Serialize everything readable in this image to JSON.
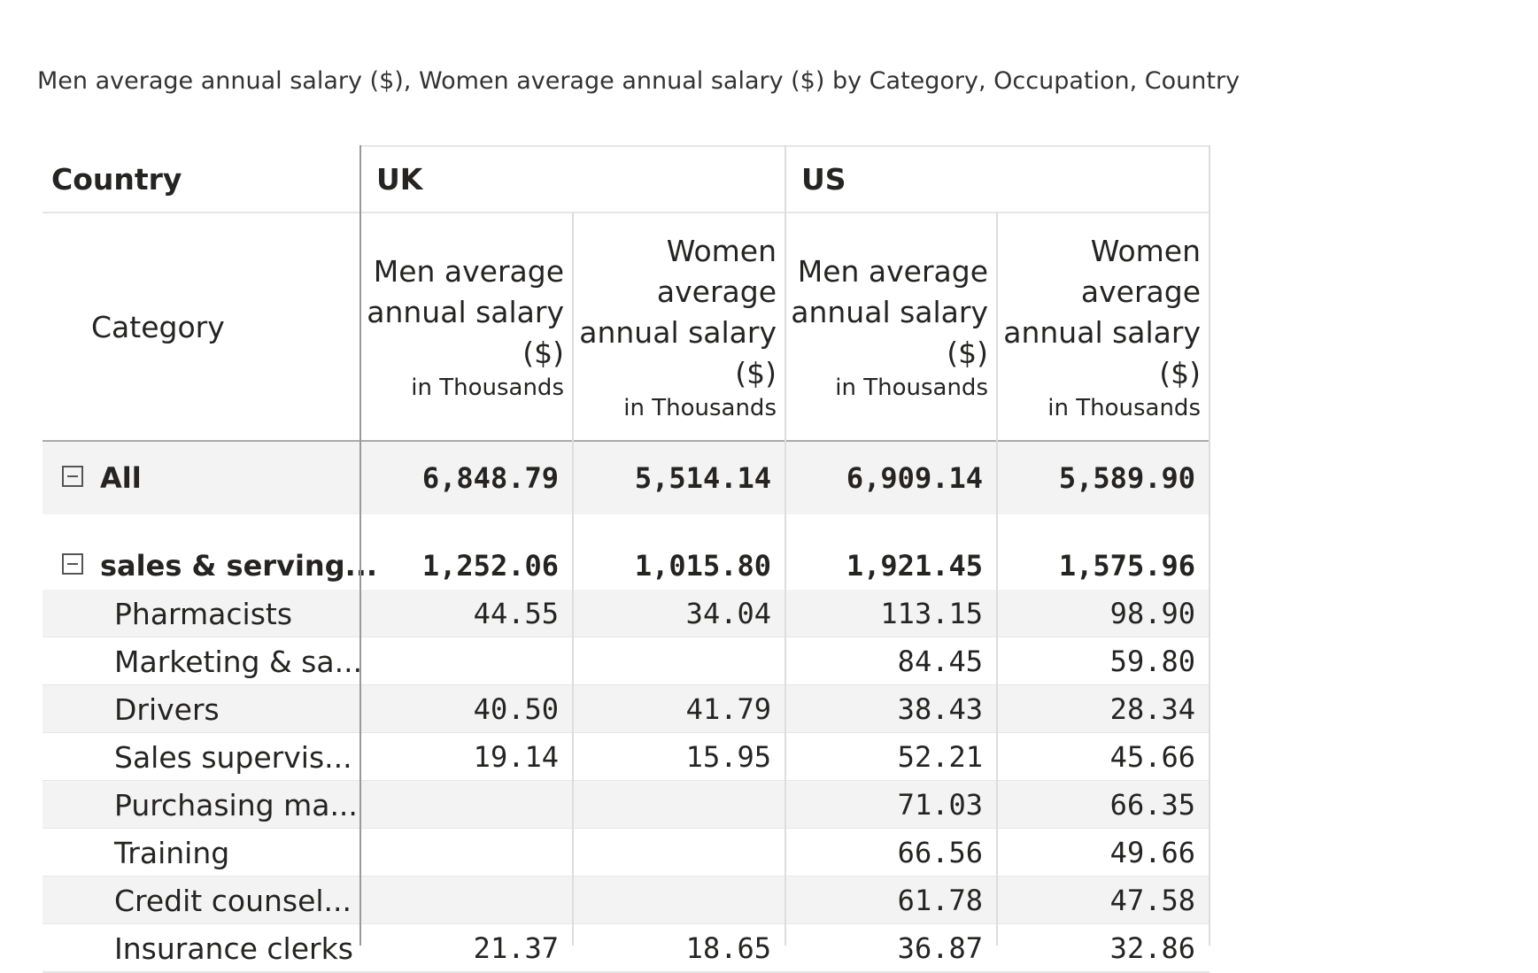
{
  "title": "Men average annual salary ($), Women average annual salary ($) by Category, Occupation, Country",
  "table": {
    "country_label": "Country",
    "countries": [
      "UK",
      "US"
    ],
    "category_label": "Category",
    "measures": [
      "Men average annual salary ($)",
      "Women average annual salary ($)"
    ],
    "unit": "in Thousands",
    "rows": [
      {
        "label": "All",
        "level": 0,
        "values": [
          "6,848.79",
          "5,514.14",
          "6,909.14",
          "5,589.90"
        ]
      },
      {
        "label": "sales & serving...",
        "level": 1,
        "values": [
          "1,252.06",
          "1,015.80",
          "1,921.45",
          "1,575.96"
        ]
      },
      {
        "label": "Pharmacists",
        "level": 2,
        "values": [
          "44.55",
          "34.04",
          "113.15",
          "98.90"
        ]
      },
      {
        "label": "Marketing & sa...",
        "level": 2,
        "values": [
          null,
          null,
          "84.45",
          "59.80"
        ]
      },
      {
        "label": "Drivers",
        "level": 2,
        "values": [
          "40.50",
          "41.79",
          "38.43",
          "28.34"
        ]
      },
      {
        "label": "Sales supervis...",
        "level": 2,
        "values": [
          "19.14",
          "15.95",
          "52.21",
          "45.66"
        ]
      },
      {
        "label": "Purchasing ma...",
        "level": 2,
        "values": [
          null,
          null,
          "71.03",
          "66.35"
        ]
      },
      {
        "label": "Training",
        "level": 2,
        "values": [
          null,
          null,
          "66.56",
          "49.66"
        ]
      },
      {
        "label": "Credit counsel...",
        "level": 2,
        "values": [
          null,
          null,
          "61.78",
          "47.58"
        ]
      },
      {
        "label": "Insurance clerks",
        "level": 2,
        "values": [
          "21.37",
          "18.65",
          "36.87",
          "32.86"
        ]
      }
    ]
  }
}
